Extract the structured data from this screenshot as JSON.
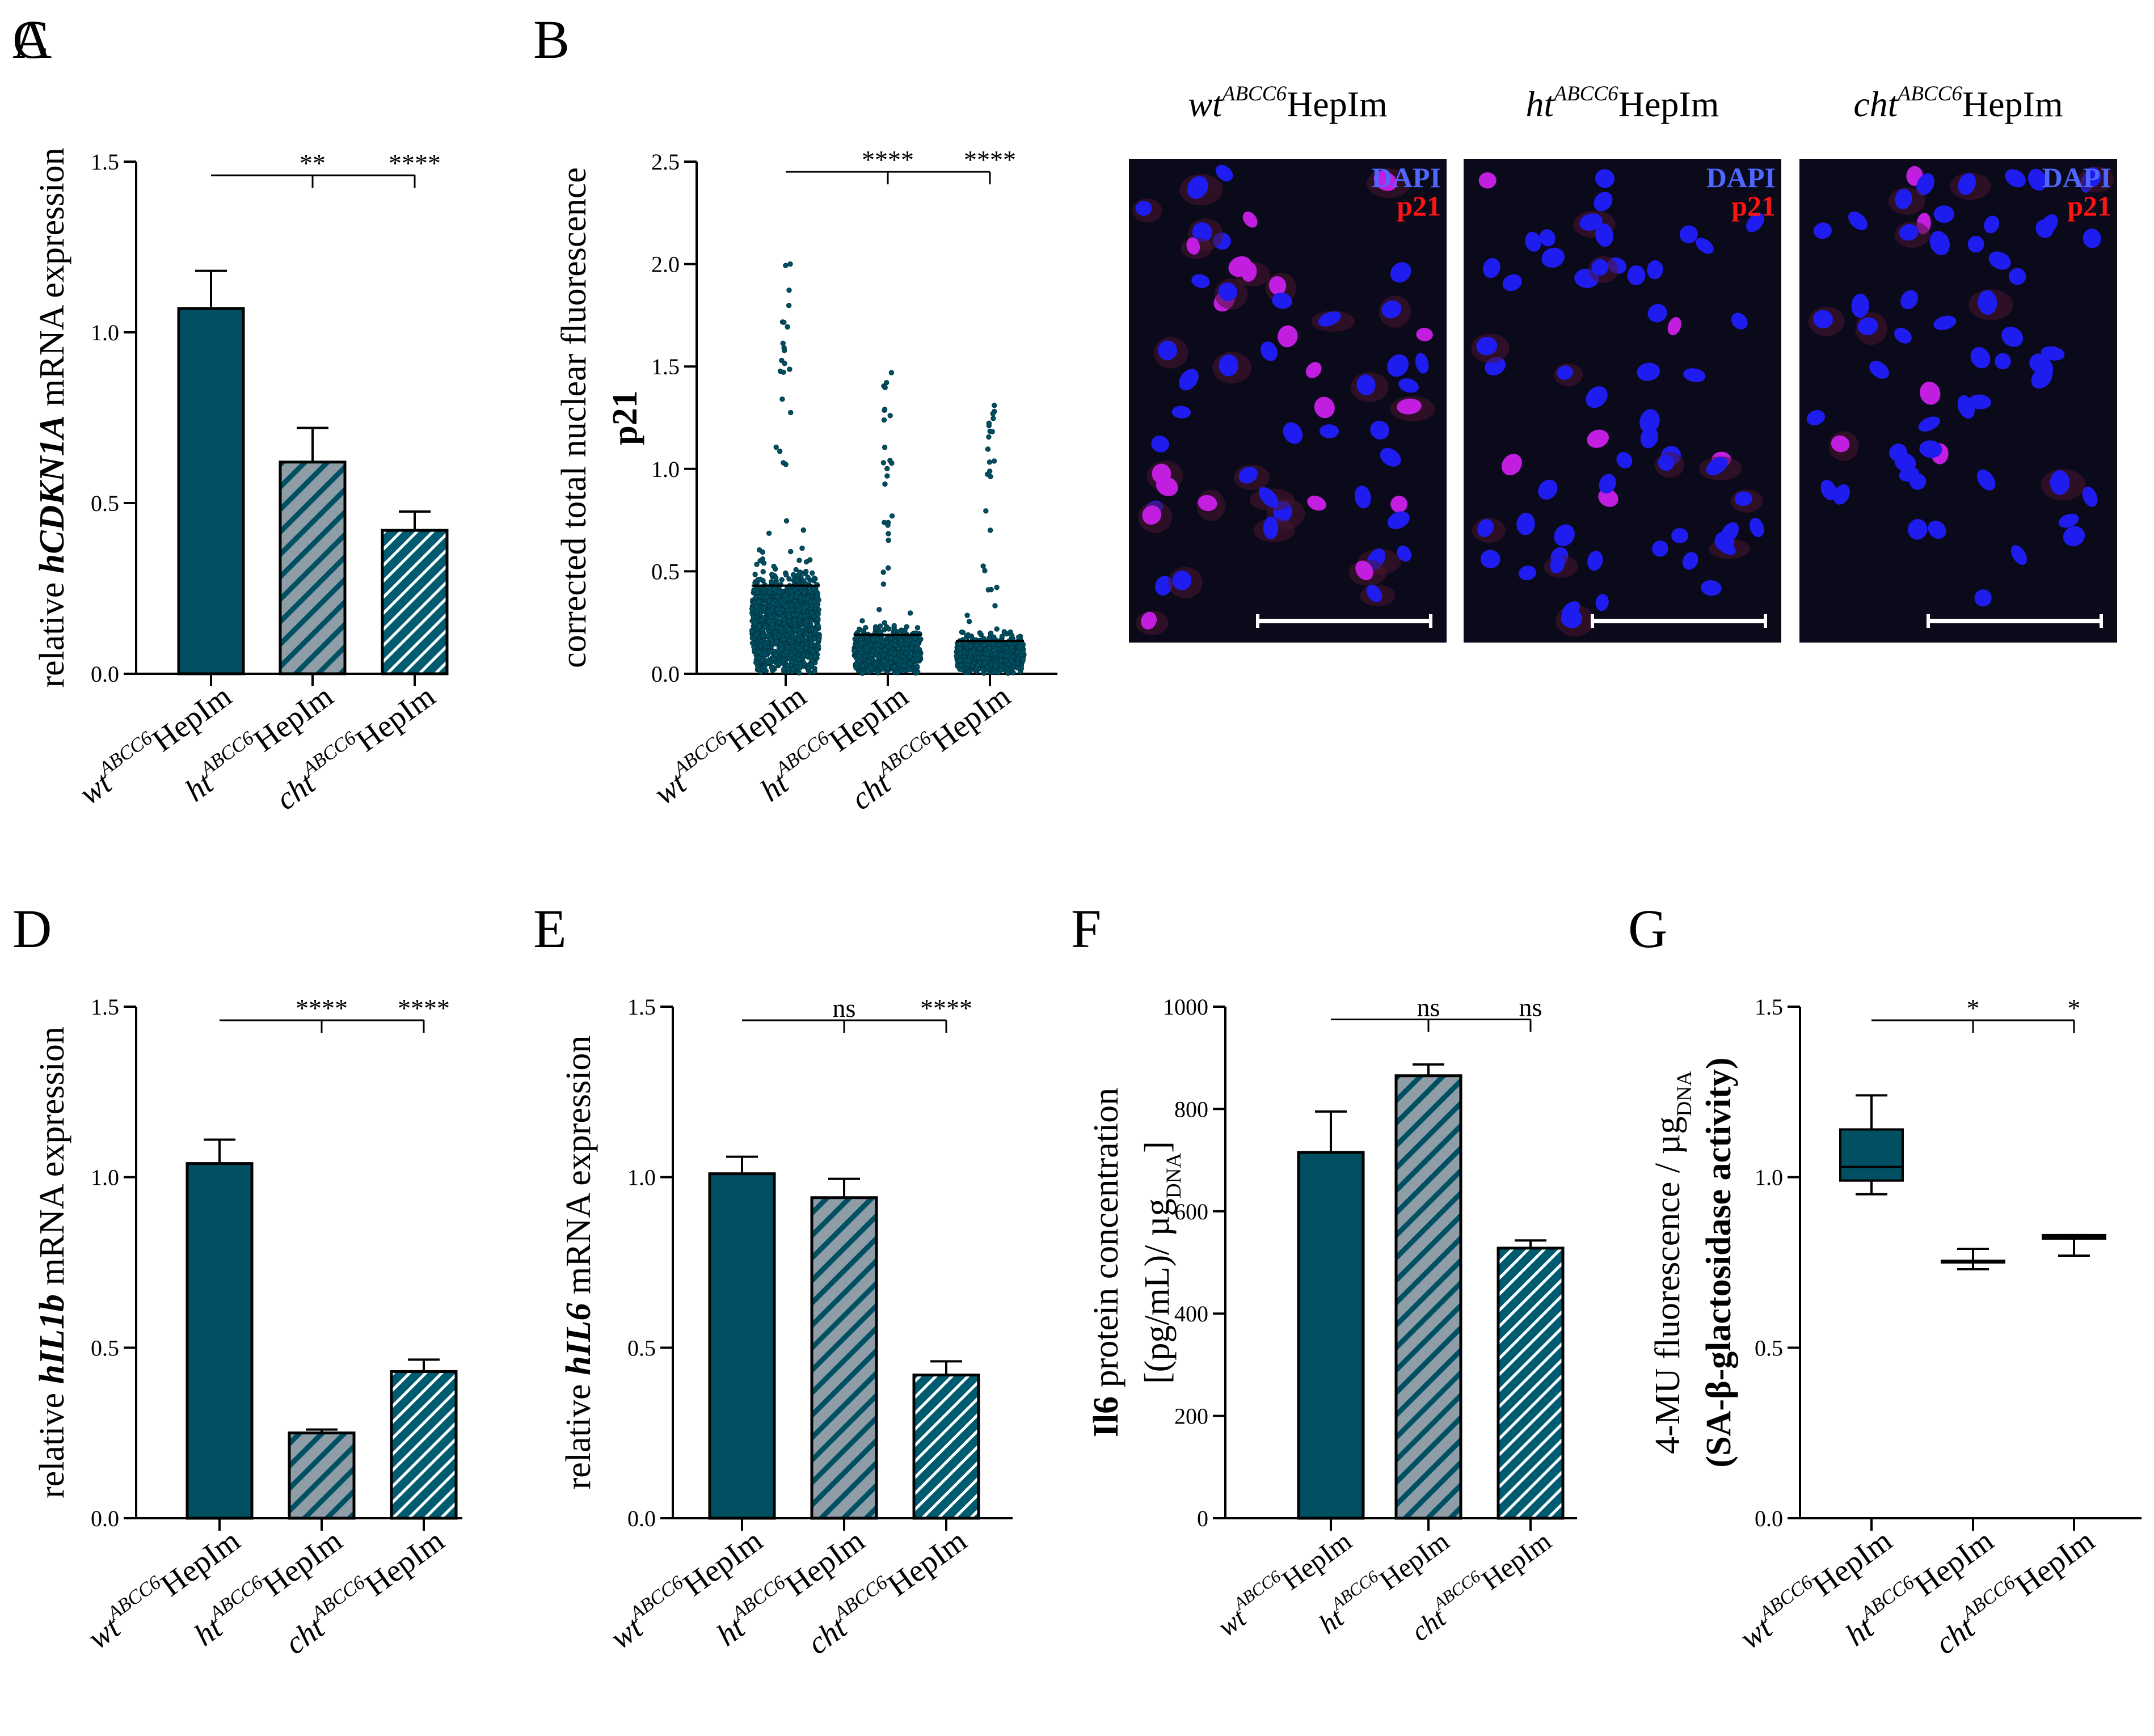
{
  "colors": {
    "teal": "#004f63",
    "hatch_gray": "#8f9ea6",
    "hatch_teal": "#005b70",
    "dapi": "#4f67ff",
    "p21": "#ff1414",
    "micro_bg": "#0b0a1a",
    "axis": "#000000"
  },
  "panels": {
    "C": {
      "label": "C",
      "images": [
        {
          "prefix": "wt",
          "sup": "ABCC6",
          "suffix": "HepIm",
          "ch1": "DAPI",
          "ch2": "p21",
          "p21_intensity": "high"
        },
        {
          "prefix": "ht",
          "sup": "ABCC6",
          "suffix": "HepIm",
          "ch1": "DAPI",
          "ch2": "p21",
          "p21_intensity": "low"
        },
        {
          "prefix": "cht",
          "sup": "ABCC6",
          "suffix": "HepIm",
          "ch1": "DAPI",
          "ch2": "p21",
          "p21_intensity": "low"
        }
      ]
    }
  },
  "categories": [
    {
      "prefix": "wt",
      "sup": "ABCC6",
      "suffix": "HepIm"
    },
    {
      "prefix": "ht",
      "sup": "ABCC6",
      "suffix": "HepIm"
    },
    {
      "prefix": "cht",
      "sup": "ABCC6",
      "suffix": "HepIm"
    }
  ],
  "chart_data": [
    {
      "id": "A",
      "type": "bar",
      "label": "A",
      "ylabel": [
        {
          "t": "relative ",
          "s": "n"
        },
        {
          "t": "hCDKN1A",
          "s": "bi"
        },
        {
          "t": " mRNA expression",
          "s": "n"
        }
      ],
      "ylim": [
        0,
        1.5
      ],
      "yticks": [
        "0.0",
        "0.5",
        "1.0",
        "1.5"
      ],
      "values": [
        1.07,
        0.62,
        0.42
      ],
      "errors": [
        0.11,
        0.1,
        0.055
      ],
      "fills": [
        "solid",
        "gray",
        "teal"
      ],
      "sig_y": 1.46,
      "sig": [
        "**",
        "****"
      ]
    },
    {
      "id": "B",
      "type": "scatter",
      "label": "B",
      "ylabel": [
        {
          "t": "corrected total nuclear fluorescence",
          "s": "n"
        }
      ],
      "ylabel2": [
        {
          "t": "p21",
          "s": "b"
        }
      ],
      "ylim": [
        0,
        2.5
      ],
      "yticks": [
        "0.0",
        "0.5",
        "1.0",
        "1.5",
        "2.0",
        "2.5"
      ],
      "means": [
        0.43,
        0.19,
        0.16
      ],
      "max_values": [
        2.0,
        1.47,
        1.31
      ],
      "point_counts": [
        1200,
        700,
        650
      ],
      "sig_y": 2.45,
      "sig": [
        "****",
        "****"
      ]
    },
    {
      "id": "D",
      "type": "bar",
      "label": "D",
      "ylabel": [
        {
          "t": "relative ",
          "s": "n"
        },
        {
          "t": "hIL1b",
          "s": "bi"
        },
        {
          "t": " mRNA expression",
          "s": "n"
        }
      ],
      "ylim": [
        0,
        1.5
      ],
      "yticks": [
        "0.0",
        "0.5",
        "1.0",
        "1.5"
      ],
      "values": [
        1.04,
        0.25,
        0.43
      ],
      "errors": [
        0.07,
        0.01,
        0.035
      ],
      "fills": [
        "solid",
        "gray",
        "teal"
      ],
      "sig_y": 1.46,
      "sig": [
        "****",
        "****"
      ]
    },
    {
      "id": "E",
      "type": "bar",
      "label": "E",
      "ylabel": [
        {
          "t": "relative ",
          "s": "n"
        },
        {
          "t": "hIL6",
          "s": "bi"
        },
        {
          "t": " mRNA expression",
          "s": "n"
        }
      ],
      "ylim": [
        0,
        1.5
      ],
      "yticks": [
        "0.0",
        "0.5",
        "1.0",
        "1.5"
      ],
      "values": [
        1.01,
        0.94,
        0.42
      ],
      "errors": [
        0.05,
        0.055,
        0.04
      ],
      "fills": [
        "solid",
        "gray",
        "teal"
      ],
      "sig_y": 1.46,
      "sig": [
        "ns",
        "****"
      ]
    },
    {
      "id": "F",
      "type": "bar",
      "label": "F",
      "ylabel": [
        {
          "t": "Il6",
          "s": "b"
        },
        {
          "t": " protein concentration",
          "s": "n"
        }
      ],
      "ylabel2": [
        {
          "t": "[(pg/mL)/ µg",
          "s": "n"
        },
        {
          "t": "DNA",
          "s": "sub"
        },
        {
          "t": "]",
          "s": "n"
        }
      ],
      "ylim": [
        0,
        1000
      ],
      "yticks": [
        "0",
        "200",
        "400",
        "600",
        "800",
        "1000"
      ],
      "values": [
        715,
        865,
        528
      ],
      "errors": [
        80,
        22,
        15
      ],
      "fills": [
        "solid",
        "gray",
        "teal"
      ],
      "sig_y": 975,
      "sig": [
        "ns",
        "ns"
      ]
    },
    {
      "id": "G",
      "type": "box",
      "label": "G",
      "ylabel": [
        {
          "t": "4-MU fluorescence / µg",
          "s": "n"
        },
        {
          "t": "DNA",
          "s": "sub"
        }
      ],
      "ylabel2": [
        {
          "t": "(SA-β-glactosidase activity)",
          "s": "b"
        }
      ],
      "ylim": [
        0,
        1.5
      ],
      "yticks": [
        "0.0",
        "0.5",
        "1.0",
        "1.5"
      ],
      "boxes": [
        {
          "min": 0.95,
          "q1": 0.99,
          "median": 1.03,
          "q3": 1.14,
          "max": 1.24
        },
        {
          "min": 0.73,
          "q1": 0.75,
          "median": 0.75,
          "q3": 0.755,
          "max": 0.79
        },
        {
          "min": 0.77,
          "q1": 0.82,
          "median": 0.825,
          "q3": 0.83,
          "max": 0.83
        }
      ],
      "sig_y": 1.46,
      "sig": [
        "*",
        "*"
      ]
    }
  ]
}
